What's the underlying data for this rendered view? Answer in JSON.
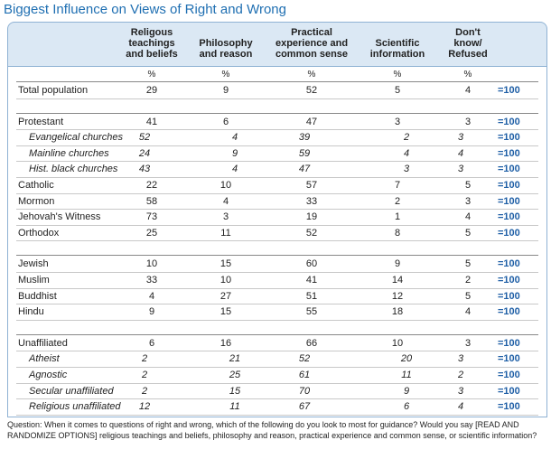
{
  "title": "Biggest Influence on Views of Right and Wrong",
  "table": {
    "columns": [
      {
        "lines": [
          "Religous",
          "teachings",
          "and beliefs"
        ],
        "unit": "%"
      },
      {
        "lines": [
          "Philosophy",
          "and reason"
        ],
        "unit": "%"
      },
      {
        "lines": [
          "Practical",
          "experience and",
          "common sense"
        ],
        "unit": "%"
      },
      {
        "lines": [
          "Scientific",
          "information"
        ],
        "unit": "%"
      },
      {
        "lines": [
          "Don't",
          "know/",
          "Refused"
        ],
        "unit": "%"
      }
    ],
    "groups": [
      {
        "rows": [
          {
            "label": "Total population",
            "values": [
              "29",
              "9",
              "52",
              "5",
              "4"
            ],
            "sum": "=100",
            "sub": false
          }
        ]
      },
      {
        "rows": [
          {
            "label": "Protestant",
            "values": [
              "41",
              "6",
              "47",
              "3",
              "3"
            ],
            "sum": "=100",
            "sub": false
          },
          {
            "label": "Evangelical churches",
            "values": [
              "52",
              "4",
              "39",
              "2",
              "3"
            ],
            "sum": "=100",
            "sub": true
          },
          {
            "label": "Mainline churches",
            "values": [
              "24",
              "9",
              "59",
              "4",
              "4"
            ],
            "sum": "=100",
            "sub": true
          },
          {
            "label": "Hist. black churches",
            "values": [
              "43",
              "4",
              "47",
              "3",
              "3"
            ],
            "sum": "=100",
            "sub": true
          },
          {
            "label": "Catholic",
            "values": [
              "22",
              "10",
              "57",
              "7",
              "5"
            ],
            "sum": "=100",
            "sub": false
          },
          {
            "label": "Mormon",
            "values": [
              "58",
              "4",
              "33",
              "2",
              "3"
            ],
            "sum": "=100",
            "sub": false
          },
          {
            "label": "Jehovah's Witness",
            "values": [
              "73",
              "3",
              "19",
              "1",
              "4"
            ],
            "sum": "=100",
            "sub": false
          },
          {
            "label": "Orthodox",
            "values": [
              "25",
              "11",
              "52",
              "8",
              "5"
            ],
            "sum": "=100",
            "sub": false
          }
        ]
      },
      {
        "rows": [
          {
            "label": "Jewish",
            "values": [
              "10",
              "15",
              "60",
              "9",
              "5"
            ],
            "sum": "=100",
            "sub": false
          },
          {
            "label": "Muslim",
            "values": [
              "33",
              "10",
              "41",
              "14",
              "2"
            ],
            "sum": "=100",
            "sub": false
          },
          {
            "label": "Buddhist",
            "values": [
              "4",
              "27",
              "51",
              "12",
              "5"
            ],
            "sum": "=100",
            "sub": false
          },
          {
            "label": "Hindu",
            "values": [
              "9",
              "15",
              "55",
              "18",
              "4"
            ],
            "sum": "=100",
            "sub": false
          }
        ]
      },
      {
        "rows": [
          {
            "label": "Unaffiliated",
            "values": [
              "6",
              "16",
              "66",
              "10",
              "3"
            ],
            "sum": "=100",
            "sub": false
          },
          {
            "label": "Atheist",
            "values": [
              "2",
              "21",
              "52",
              "20",
              "3"
            ],
            "sum": "=100",
            "sub": true
          },
          {
            "label": "Agnostic",
            "values": [
              "2",
              "25",
              "61",
              "11",
              "2"
            ],
            "sum": "=100",
            "sub": true
          },
          {
            "label": "Secular unaffiliated",
            "values": [
              "2",
              "15",
              "70",
              "9",
              "3"
            ],
            "sum": "=100",
            "sub": true
          },
          {
            "label": "Religious unaffiliated",
            "values": [
              "12",
              "11",
              "67",
              "6",
              "4"
            ],
            "sum": "=100",
            "sub": true
          }
        ]
      }
    ]
  },
  "footnote": "Question: When it comes to questions of right and wrong, which of the following do you look to most for guidance? Would you say [READ AND RANDOMIZE OPTIONS] religious teachings and beliefs, philosophy and reason, practical experience and common sense, or scientific information?"
}
